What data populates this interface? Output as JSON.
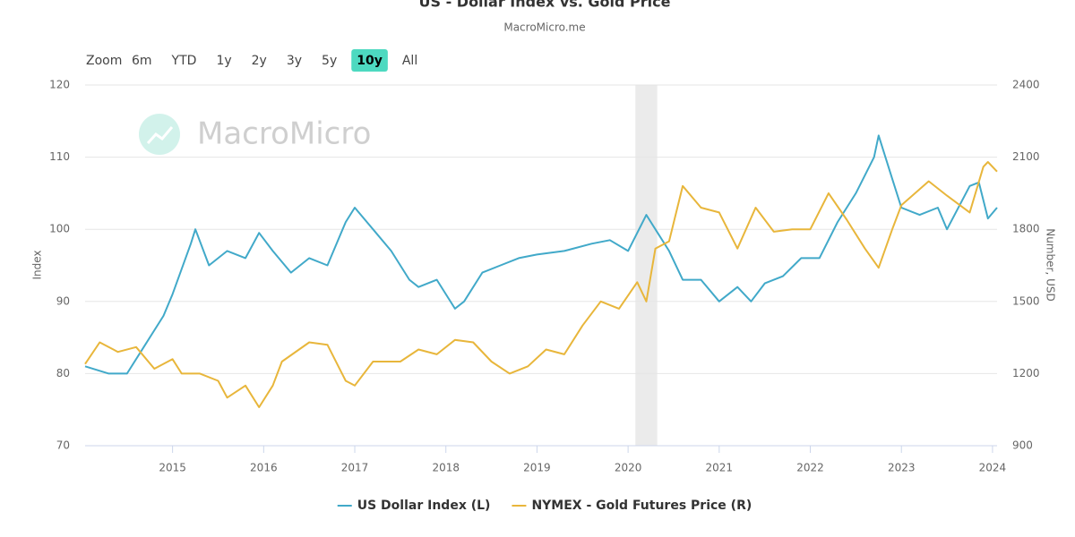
{
  "chart_data": {
    "type": "line",
    "title": "US - Dollar Index vs. Gold Price",
    "subtitle": "MacroMicro.me",
    "watermark": "MacroMicro",
    "toolbar": {
      "label": "Zoom",
      "buttons": [
        "6m",
        "YTD",
        "1y",
        "2y",
        "3y",
        "5y",
        "10y",
        "All"
      ],
      "active": "10y"
    },
    "y_label": "Index",
    "y2_label": "Number, USD",
    "xlim": [
      2014.04,
      2024.05
    ],
    "xticks": [
      2015,
      2016,
      2017,
      2018,
      2019,
      2020,
      2021,
      2022,
      2023,
      2024
    ],
    "ylim": [
      70,
      120
    ],
    "yticks": [
      70,
      80,
      90,
      100,
      110,
      120
    ],
    "y2lim": [
      900,
      2400
    ],
    "y2ticks": [
      900,
      1200,
      1500,
      1800,
      2100,
      2400
    ],
    "grid": true,
    "shaded_ranges": [
      [
        2020.08,
        2020.32
      ]
    ],
    "shade_color": "#ebebeb",
    "series": [
      {
        "name": "US Dollar Index (L)",
        "color": "#41a9c9",
        "axis": "y",
        "x": [
          2014.04,
          2014.3,
          2014.5,
          2014.7,
          2014.9,
          2015.0,
          2015.2,
          2015.25,
          2015.4,
          2015.6,
          2015.8,
          2015.95,
          2016.1,
          2016.3,
          2016.5,
          2016.7,
          2016.9,
          2017.0,
          2017.2,
          2017.4,
          2017.6,
          2017.7,
          2017.9,
          2018.1,
          2018.2,
          2018.4,
          2018.6,
          2018.8,
          2019.0,
          2019.3,
          2019.6,
          2019.8,
          2020.0,
          2020.2,
          2020.3,
          2020.45,
          2020.6,
          2020.8,
          2021.0,
          2021.2,
          2021.35,
          2021.5,
          2021.7,
          2021.9,
          2022.1,
          2022.3,
          2022.5,
          2022.7,
          2022.75,
          2022.9,
          2023.0,
          2023.2,
          2023.4,
          2023.5,
          2023.75,
          2023.85,
          2023.95,
          2024.05
        ],
        "values": [
          81,
          80,
          80,
          84,
          88,
          91,
          98,
          100,
          95,
          97,
          96,
          99.5,
          97,
          94,
          96,
          95,
          101,
          103,
          100,
          97,
          93,
          92,
          93,
          89,
          90,
          94,
          95,
          96,
          96.5,
          97,
          98,
          98.5,
          97,
          102,
          100,
          97,
          93,
          93,
          90,
          92,
          90,
          92.5,
          93.5,
          96,
          96,
          101,
          105,
          110,
          113,
          107,
          103,
          102,
          103,
          100,
          106,
          106.5,
          101.5,
          103
        ]
      },
      {
        "name": "NYMEX - Gold Futures Price (R)",
        "color": "#e8b63b",
        "axis": "y2",
        "x": [
          2014.04,
          2014.2,
          2014.4,
          2014.6,
          2014.8,
          2015.0,
          2015.1,
          2015.3,
          2015.5,
          2015.6,
          2015.8,
          2015.95,
          2016.1,
          2016.2,
          2016.5,
          2016.7,
          2016.9,
          2017.0,
          2017.2,
          2017.5,
          2017.7,
          2017.9,
          2018.1,
          2018.3,
          2018.5,
          2018.7,
          2018.9,
          2019.1,
          2019.3,
          2019.5,
          2019.7,
          2019.9,
          2020.1,
          2020.2,
          2020.3,
          2020.45,
          2020.6,
          2020.8,
          2021.0,
          2021.2,
          2021.4,
          2021.6,
          2021.8,
          2022.0,
          2022.2,
          2022.4,
          2022.6,
          2022.75,
          2022.9,
          2023.0,
          2023.3,
          2023.5,
          2023.75,
          2023.9,
          2023.95,
          2024.05
        ],
        "values": [
          1240,
          1330,
          1290,
          1310,
          1220,
          1260,
          1200,
          1200,
          1170,
          1100,
          1150,
          1060,
          1150,
          1250,
          1330,
          1320,
          1170,
          1150,
          1250,
          1250,
          1300,
          1280,
          1340,
          1330,
          1250,
          1200,
          1230,
          1300,
          1280,
          1400,
          1500,
          1470,
          1580,
          1500,
          1720,
          1750,
          1980,
          1890,
          1870,
          1720,
          1890,
          1790,
          1800,
          1800,
          1950,
          1840,
          1720,
          1640,
          1800,
          1900,
          2000,
          1940,
          1870,
          2060,
          2080,
          2040
        ]
      }
    ]
  }
}
